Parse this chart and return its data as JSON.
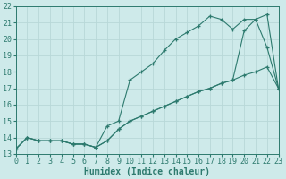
{
  "series1_x": [
    0,
    1,
    2,
    3,
    4,
    5,
    6,
    7,
    8,
    9,
    10,
    11,
    12,
    13,
    14,
    15,
    16,
    17,
    18,
    19,
    20,
    21,
    22,
    23
  ],
  "series1_y": [
    13.3,
    14.0,
    13.8,
    13.8,
    13.8,
    13.6,
    13.6,
    13.4,
    13.8,
    14.5,
    15.0,
    15.3,
    15.6,
    15.9,
    16.2,
    16.5,
    16.8,
    17.0,
    17.3,
    17.5,
    17.8,
    18.0,
    18.3,
    17.0
  ],
  "series2_x": [
    0,
    1,
    2,
    3,
    4,
    5,
    6,
    7,
    8,
    9,
    10,
    11,
    12,
    13,
    14,
    15,
    16,
    17,
    18,
    19,
    20,
    21,
    22,
    23
  ],
  "series2_y": [
    13.3,
    14.0,
    13.8,
    13.8,
    13.8,
    13.6,
    13.6,
    13.4,
    14.7,
    15.0,
    17.5,
    18.0,
    18.5,
    19.3,
    20.0,
    20.4,
    20.8,
    21.4,
    21.2,
    20.6,
    21.2,
    21.2,
    19.5,
    17.0
  ],
  "series3_x": [
    0,
    1,
    2,
    3,
    4,
    5,
    6,
    7,
    8,
    9,
    10,
    11,
    12,
    13,
    14,
    15,
    16,
    17,
    18,
    19,
    20,
    21,
    22,
    23
  ],
  "series3_y": [
    13.3,
    14.0,
    13.8,
    13.8,
    13.8,
    13.6,
    13.6,
    13.4,
    13.8,
    14.5,
    15.0,
    15.3,
    15.6,
    15.9,
    16.2,
    16.5,
    16.8,
    17.0,
    17.3,
    17.5,
    20.5,
    21.2,
    21.5,
    17.0
  ],
  "line_color": "#2d7a6e",
  "bg_color": "#ceeaea",
  "grid_color": "#b8d8d8",
  "xlabel": "Humidex (Indice chaleur)",
  "xlim": [
    0,
    23
  ],
  "ylim": [
    13,
    22
  ],
  "xticks": [
    0,
    1,
    2,
    3,
    4,
    5,
    6,
    7,
    8,
    9,
    10,
    11,
    12,
    13,
    14,
    15,
    16,
    17,
    18,
    19,
    20,
    21,
    22,
    23
  ],
  "yticks": [
    13,
    14,
    15,
    16,
    17,
    18,
    19,
    20,
    21,
    22
  ],
  "xlabel_fontsize": 7,
  "tick_fontsize": 6
}
